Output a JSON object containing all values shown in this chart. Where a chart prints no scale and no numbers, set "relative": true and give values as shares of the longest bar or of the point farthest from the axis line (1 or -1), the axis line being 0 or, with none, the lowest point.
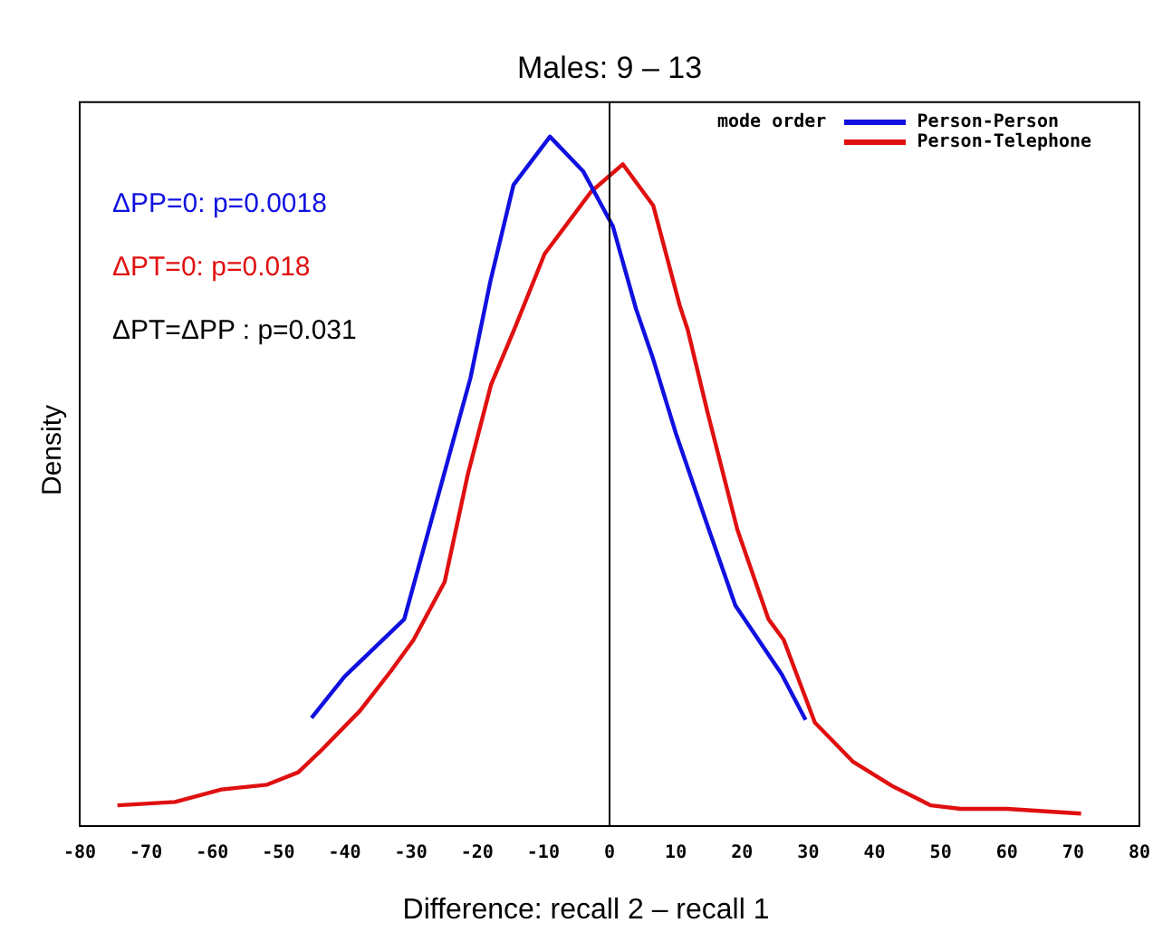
{
  "chart_data": {
    "type": "line",
    "title": "Males: 9 – 13",
    "xlabel": "Difference: recall 2 – recall 1",
    "ylabel": "Density",
    "legend_title": "mode order",
    "relative": true,
    "xlim": [
      -80,
      80
    ],
    "xticks": [
      -80,
      -70,
      -60,
      -50,
      -40,
      -30,
      -20,
      -10,
      0,
      10,
      20,
      30,
      40,
      50,
      60,
      70,
      80
    ],
    "grid": false,
    "legend": "top right",
    "marker": "none",
    "line_style": "solid",
    "ref_lines": [
      {
        "axis": "x",
        "value": 0,
        "color": "#000000"
      }
    ],
    "annotations": [
      "ΔPP=0:  p=0.0018",
      "ΔPT=0:  p=0.018",
      "ΔPT=ΔPP :  p=0.031"
    ],
    "series": [
      {
        "name": "Person-Person",
        "color": "#1010e0",
        "x": [
          -45,
          -40,
          -31,
          -25,
          -21,
          -18,
          -14.5,
          -9,
          -4,
          0.5,
          4,
          6.5,
          10,
          15,
          19,
          26,
          29.6
        ],
        "values": [
          0.157,
          0.217,
          0.3,
          0.51,
          0.65,
          0.79,
          0.93,
          1.0,
          0.95,
          0.87,
          0.75,
          0.68,
          0.57,
          0.43,
          0.32,
          0.22,
          0.154
        ]
      },
      {
        "name": "Person-Telephone",
        "color": "#e01010",
        "x": [
          -74.3,
          -65.6,
          -58.6,
          -51.7,
          -47,
          -43.5,
          -37.7,
          -33,
          -29.6,
          -24.9,
          -21.4,
          -17.9,
          -14.4,
          -9.8,
          -2.8,
          2,
          6.6,
          10.6,
          11.8,
          14.8,
          19.3,
          24,
          26.3,
          31,
          36.8,
          42.7,
          48.5,
          53,
          60,
          71.2
        ],
        "values": [
          0.03,
          0.035,
          0.053,
          0.06,
          0.078,
          0.11,
          0.167,
          0.225,
          0.27,
          0.354,
          0.51,
          0.64,
          0.72,
          0.83,
          0.92,
          0.96,
          0.9,
          0.755,
          0.72,
          0.6,
          0.43,
          0.3,
          0.27,
          0.15,
          0.093,
          0.058,
          0.03,
          0.025,
          0.025,
          0.018
        ]
      }
    ]
  }
}
